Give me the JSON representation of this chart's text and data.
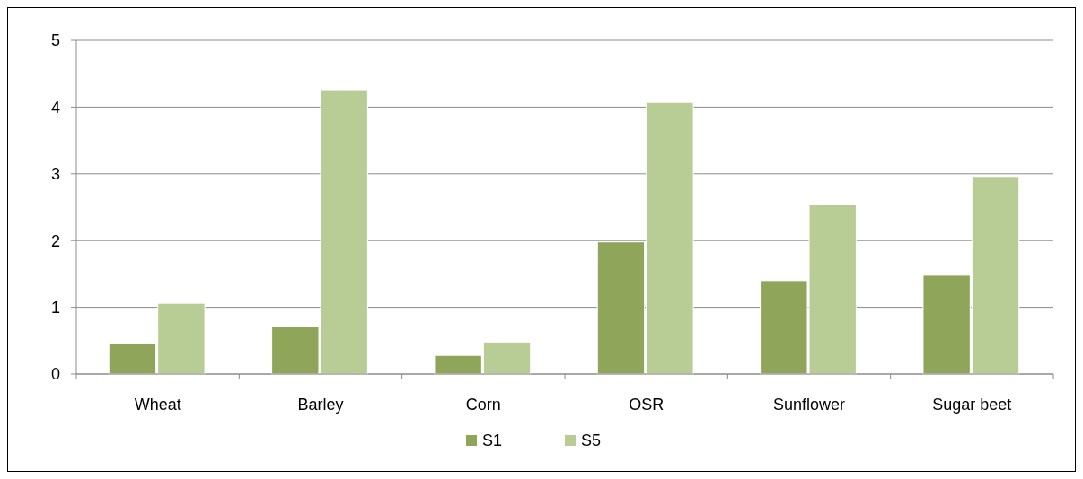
{
  "chart_data": {
    "type": "bar",
    "categories": [
      "Wheat",
      "Barley",
      "Corn",
      "OSR",
      "Sunflower",
      "Sugar beet"
    ],
    "series": [
      {
        "name": "S1",
        "color": "#8fa65a",
        "values": [
          0.46,
          0.71,
          0.28,
          1.98,
          1.4,
          1.48
        ]
      },
      {
        "name": "S5",
        "color": "#b8cc96",
        "values": [
          1.06,
          4.26,
          0.48,
          4.07,
          2.54,
          2.96
        ]
      }
    ],
    "ylim": [
      0,
      5
    ],
    "yticks": [
      0,
      1,
      2,
      3,
      4,
      5
    ],
    "grid": "y",
    "legend": "bottom"
  }
}
